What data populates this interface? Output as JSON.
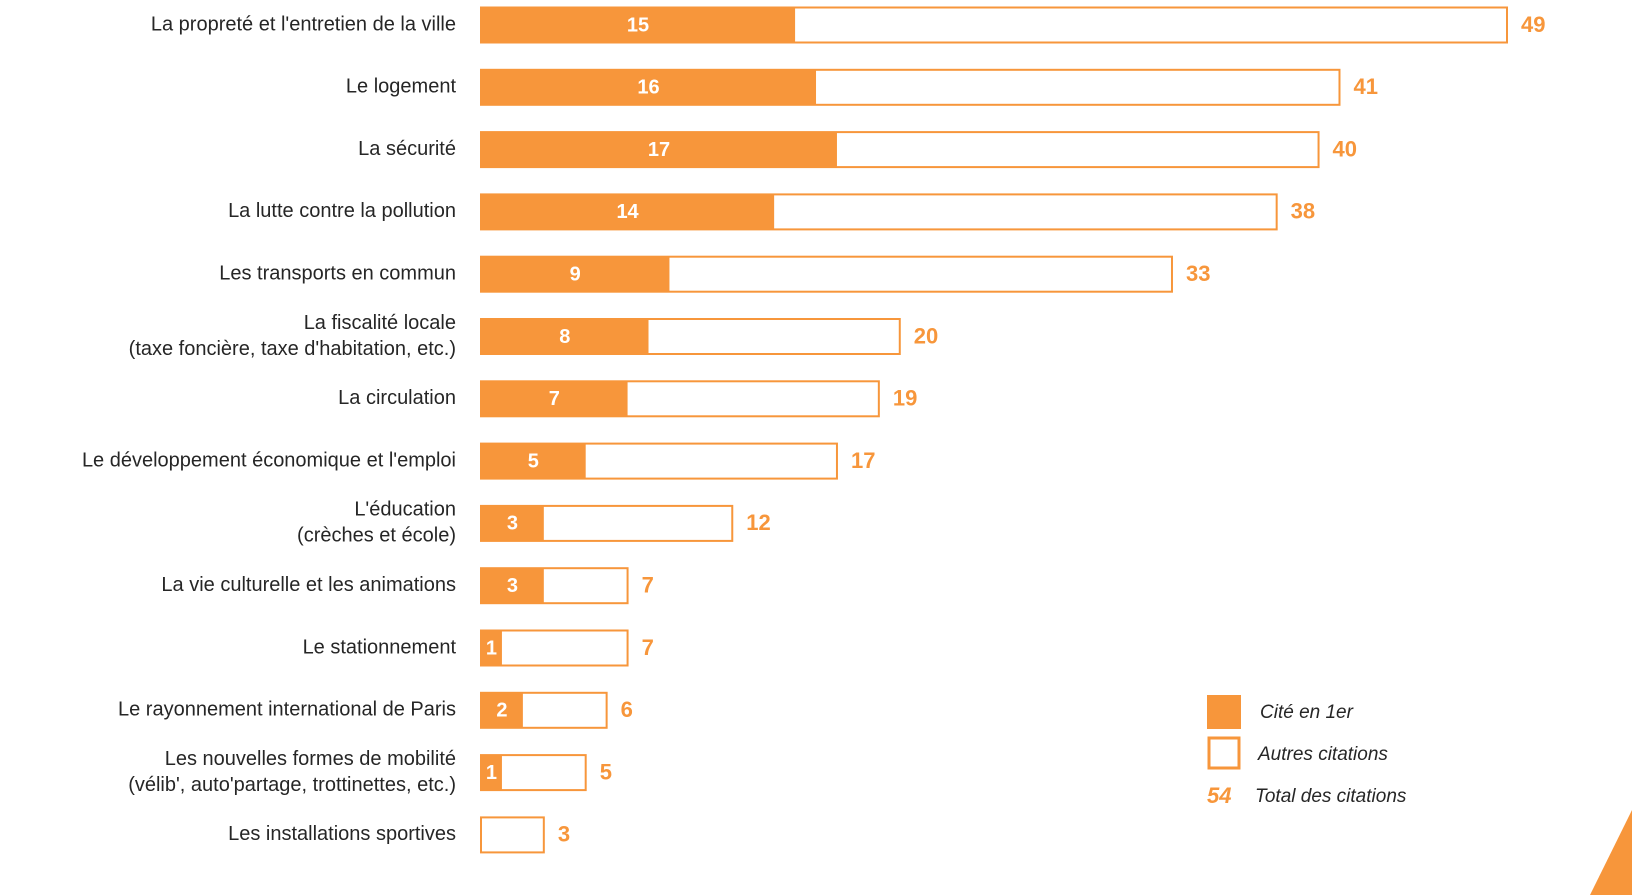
{
  "chart_data": {
    "type": "bar",
    "categories": [
      "La propreté et l'entretien de la ville",
      "Le logement",
      "La sécurité",
      "La lutte contre la pollution",
      "Les transports en commun",
      [
        "La fiscalité locale",
        "(taxe foncière, taxe d'habitation, etc.)"
      ],
      "La circulation",
      "Le développement économique et l'emploi",
      [
        "L'éducation",
        "(crèches et école)"
      ],
      "La vie culturelle et les animations",
      "Le stationnement",
      "Le rayonnement international de Paris",
      [
        "Les nouvelles formes de mobilité",
        "(vélib', auto'partage, trottinettes, etc.)"
      ],
      "Les installations sportives"
    ],
    "series": [
      {
        "name": "Cité en 1er",
        "color": "#f7963b",
        "values": [
          15,
          16,
          17,
          14,
          9,
          8,
          7,
          5,
          3,
          3,
          1,
          2,
          1,
          null
        ]
      },
      {
        "name": "Total des citations",
        "color": "#f7963b",
        "values": [
          49,
          41,
          40,
          38,
          33,
          20,
          19,
          17,
          12,
          7,
          7,
          6,
          5,
          3
        ]
      }
    ],
    "legend": {
      "outline_label": "Autres citations",
      "sample_value": 54
    }
  }
}
